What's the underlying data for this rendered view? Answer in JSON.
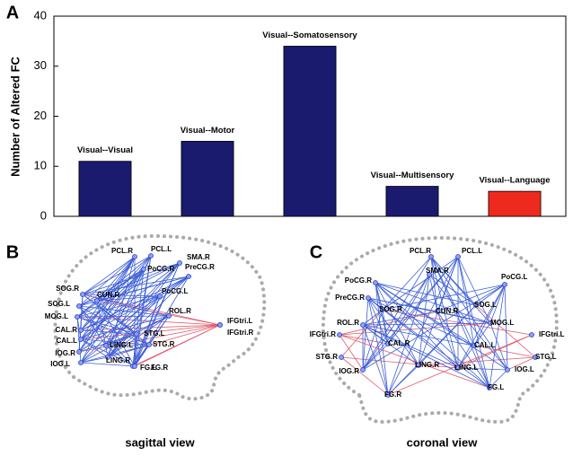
{
  "panels": [
    "A",
    "B",
    "C"
  ],
  "chart_data": {
    "type": "bar",
    "ylabel": "Number of Altered FC",
    "categories": [
      "Visual--Visual",
      "Visual--Motor",
      "Visual--Somatosensory",
      "Visual--Multisensory",
      "Visual--Language"
    ],
    "values": [
      11,
      15,
      34,
      6,
      5
    ],
    "colors": [
      "#1a1a6e",
      "#1a1a6e",
      "#1a1a6e",
      "#1a1a6e",
      "#ee2a1e"
    ],
    "ylim": [
      0,
      40
    ],
    "yticks": [
      0,
      10,
      20,
      30,
      40
    ]
  },
  "networks": [
    {
      "caption": "sagittal view",
      "nodes": [
        "PCL.R",
        "PCL.L",
        "SMA.R",
        "PoCG.R",
        "PreCG.R",
        "PoCG.L",
        "SOG.R",
        "CUN.R",
        "SOG.L",
        "MOG.L",
        "ROL.R",
        "IFGtri.L",
        "IFGtri.R",
        "STG.L",
        "STG.R",
        "CAL.R",
        "CAL.L",
        "LING.L",
        "LING.R",
        "IOG.R",
        "IOG.L",
        "FG.L",
        "FG.R"
      ]
    },
    {
      "caption": "coronal view",
      "nodes": [
        "PCL.R",
        "PCL.L",
        "PoCG.R",
        "SMA.R",
        "PoCG.L",
        "PreCG.R",
        "SOG.R",
        "CUN.R",
        "SOG.L",
        "ROL.R",
        "MOG.L",
        "IFGtri.R",
        "IFGtri.L",
        "CAL.R",
        "CAL.L",
        "STG.R",
        "STG.L",
        "LING.R",
        "LING.L",
        "IOG.R",
        "IOG.L",
        "FG.R",
        "FG.L"
      ]
    }
  ]
}
